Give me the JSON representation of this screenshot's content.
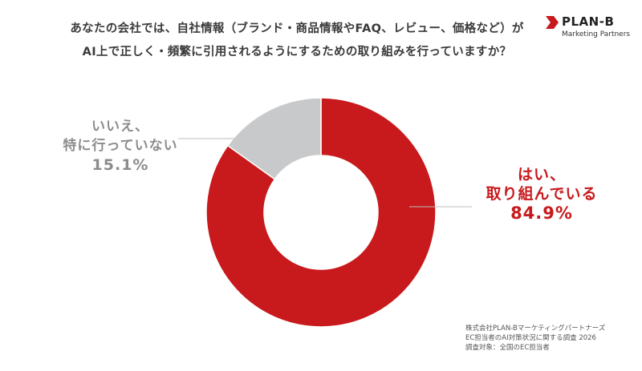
{
  "title": {
    "line1": "あなたの会社では、自社情報（ブランド・商品情報やFAQ、レビュー、価格など）が",
    "line2": "AI上で正しく・頻繁に引用されるようにするための取り組みを行っていますか？"
  },
  "logo": {
    "name": "PLAN-B",
    "sub": "Marketing Partners"
  },
  "chart_data": {
    "type": "pie",
    "donut": true,
    "slices": [
      {
        "label_lines": [
          "はい、",
          "取り組んでいる"
        ],
        "value": 84.9,
        "value_text": "84.9%",
        "color": "#c8191c"
      },
      {
        "label_lines": [
          "いいえ、",
          "特に行っていない"
        ],
        "value": 15.1,
        "value_text": "15.1%",
        "color": "#c8c9cb"
      }
    ]
  },
  "source": {
    "line1": "株式会社PLAN-Bマーケティングパートナーズ",
    "line2": "EC担当者のAI対策状況に関する調査 2026",
    "line3": "調査対象：全国のEC担当者"
  }
}
